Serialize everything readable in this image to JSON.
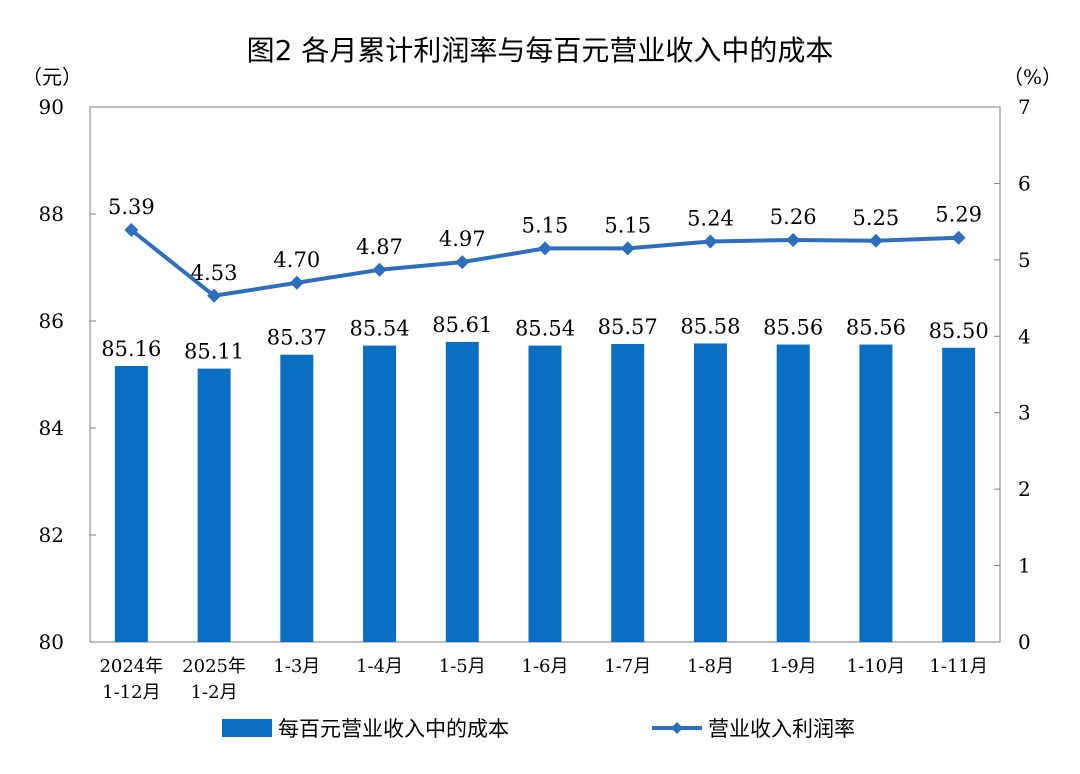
{
  "chart_data": {
    "type": "bar",
    "title": "图2  各月累计利润率与每百元营业收入中的成本",
    "left_axis": {
      "unit": "（元）",
      "ylim": [
        80,
        90
      ],
      "ticks": [
        80,
        82,
        84,
        86,
        88,
        90
      ]
    },
    "right_axis": {
      "unit": "（%）",
      "ylim": [
        0,
        7
      ],
      "ticks": [
        0,
        1,
        2,
        3,
        4,
        5,
        6,
        7
      ]
    },
    "categories": [
      [
        "2024年",
        "1-12月"
      ],
      [
        "2025年",
        "1-2月"
      ],
      [
        "1-3月"
      ],
      [
        "1-4月"
      ],
      [
        "1-5月"
      ],
      [
        "1-6月"
      ],
      [
        "1-7月"
      ],
      [
        "1-8月"
      ],
      [
        "1-9月"
      ],
      [
        "1-10月"
      ],
      [
        "1-11月"
      ]
    ],
    "series": [
      {
        "name": "每百元营业收入中的成本",
        "type": "bar",
        "axis": "left",
        "color": "#0a6fc2",
        "values": [
          85.16,
          85.11,
          85.37,
          85.54,
          85.61,
          85.54,
          85.57,
          85.58,
          85.56,
          85.56,
          85.5
        ],
        "labels": [
          "85.16",
          "85.11",
          "85.37",
          "85.54",
          "85.61",
          "85.54",
          "85.57",
          "85.58",
          "85.56",
          "85.56",
          "85.50"
        ]
      },
      {
        "name": "营业收入利润率",
        "type": "line",
        "marker": "diamond",
        "axis": "right",
        "color": "#2e6fbd",
        "values": [
          5.39,
          4.53,
          4.7,
          4.87,
          4.97,
          5.15,
          5.15,
          5.24,
          5.26,
          5.25,
          5.29
        ],
        "labels": [
          "5.39",
          "4.53",
          "4.70",
          "4.87",
          "4.97",
          "5.15",
          "5.15",
          "5.24",
          "5.26",
          "5.25",
          "5.29"
        ]
      }
    ],
    "legend": "bottom",
    "grid": false
  }
}
